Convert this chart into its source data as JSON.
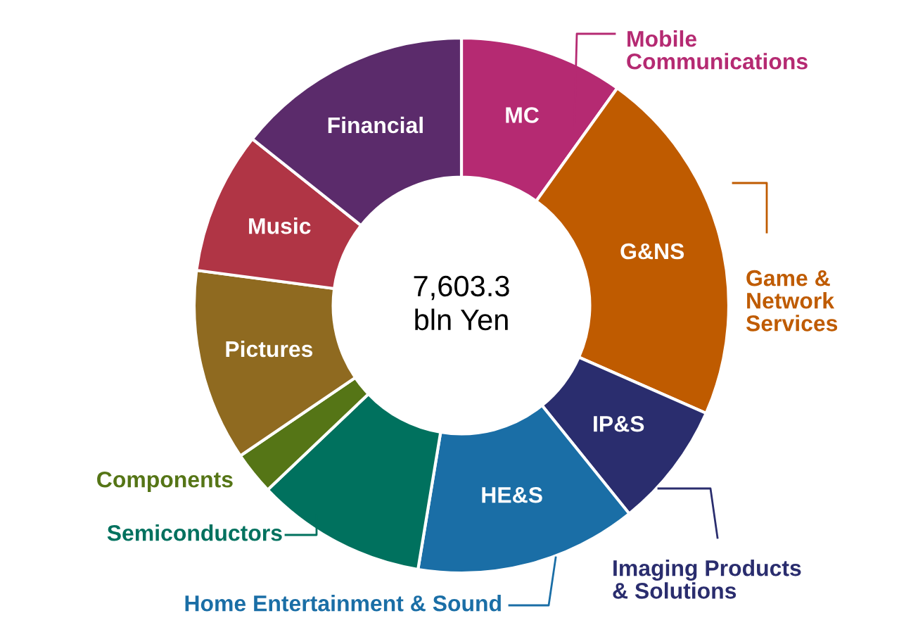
{
  "chart_data": {
    "type": "donut",
    "categories": [
      "Mobile Communications",
      "Game & Network Services",
      "Imaging Products & Solutions",
      "Home Entertainment & Sound",
      "Semiconductors",
      "Components",
      "Pictures",
      "Music",
      "Financial"
    ],
    "values": [
      9.9,
      21.7,
      7.6,
      13.4,
      10.3,
      2.6,
      11.6,
      8.6,
      14.3
    ],
    "colors": [
      "#b52a72",
      "#bf5b00",
      "#2a2d6e",
      "#1a6ea6",
      "#00715e",
      "#557516",
      "#8f6a20",
      "#b03545",
      "#5b2b6b"
    ],
    "annotations": [
      "7,603.3\nbln Yen",
      {
        "text": "MC",
        "x": "Mobile Communications"
      },
      {
        "text": "G&NS",
        "x": "Game & Network Services"
      },
      {
        "text": "IP&S",
        "x": "Imaging Products & Solutions"
      },
      {
        "text": "HE&S",
        "x": "Home Entertainment & Sound"
      }
    ]
  }
}
